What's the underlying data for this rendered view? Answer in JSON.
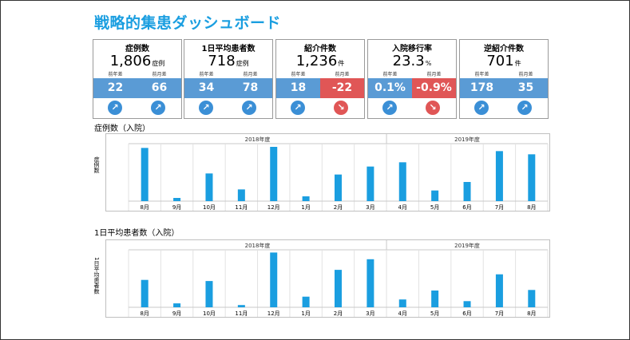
{
  "title": "戦略的集患ダッシュボード",
  "kpis": [
    {
      "name": "症例数",
      "value": "1,806",
      "unit": "症例",
      "sub_left": "前年差",
      "sub_right": "前月差",
      "delta_left": "22",
      "delta_right": "66",
      "dir_left": "up",
      "dir_right": "up"
    },
    {
      "name": "1日平均患者数",
      "value": "718",
      "unit": "症例",
      "sub_left": "前年差",
      "sub_right": "前月差",
      "delta_left": "34",
      "delta_right": "78",
      "dir_left": "up",
      "dir_right": "up"
    },
    {
      "name": "紹介件数",
      "value": "1,236",
      "unit": "件",
      "sub_left": "前年差",
      "sub_right": "前月差",
      "delta_left": "18",
      "delta_right": "-22",
      "dir_left": "up",
      "dir_right": "down"
    },
    {
      "name": "入院移行率",
      "value": "23.3",
      "unit": "%",
      "sub_left": "前年差",
      "sub_right": "前月差",
      "delta_left": "0.1%",
      "delta_right": "-0.9%",
      "dir_left": "up",
      "dir_right": "down"
    },
    {
      "name": "逆紹介件数",
      "value": "701",
      "unit": "件",
      "sub_left": "前年差",
      "sub_right": "前月差",
      "delta_left": "178",
      "delta_right": "35",
      "dir_left": "up",
      "dir_right": "up"
    }
  ],
  "colors": {
    "title": "#1a9ee0",
    "bar": "#1a9ee0",
    "positive_box": "#5a9bd5",
    "negative_box": "#e05656",
    "arrow_up": "#3b8fd6",
    "arrow_down": "#e05656"
  },
  "sections": {
    "cases_label": "症例数（入院）",
    "daily_label": "1日平均患者数（入院）"
  },
  "chart_data": [
    {
      "type": "bar",
      "title": "症例数（入院）",
      "ylabel": "症例数",
      "groups": [
        "2018年度",
        "2019年度"
      ],
      "categories": [
        "8月",
        "9月",
        "10月",
        "11月",
        "12月",
        "1月",
        "2月",
        "3月",
        "4月",
        "5月",
        "6月",
        "7月",
        "8月"
      ],
      "values": [
        100,
        6,
        52,
        22,
        102,
        9,
        50,
        65,
        73,
        20,
        36,
        94,
        88
      ],
      "ylim": [
        0,
        105
      ]
    },
    {
      "type": "bar",
      "title": "1日平均患者数（入院）",
      "ylabel": "1日平均患者数",
      "groups": [
        "2018年度",
        "2019年度"
      ],
      "categories": [
        "8月",
        "9月",
        "10月",
        "11月",
        "12月",
        "1月",
        "2月",
        "3月",
        "4月",
        "5月",
        "6月",
        "7月",
        "8月"
      ],
      "values": [
        49,
        7,
        47,
        4,
        98,
        19,
        67,
        86,
        14,
        30,
        11,
        59,
        31
      ],
      "ylim": [
        0,
        100
      ]
    }
  ]
}
